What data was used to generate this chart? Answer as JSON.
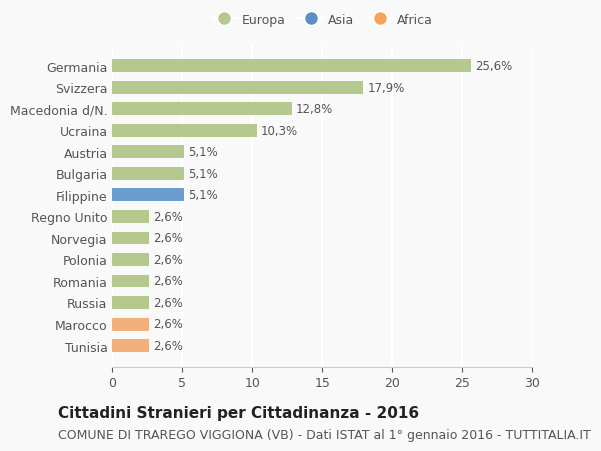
{
  "categories": [
    "Tunisia",
    "Marocco",
    "Russia",
    "Romania",
    "Polonia",
    "Norvegia",
    "Regno Unito",
    "Filippine",
    "Bulgaria",
    "Austria",
    "Ucraina",
    "Macedonia d/N.",
    "Svizzera",
    "Germania"
  ],
  "values": [
    2.6,
    2.6,
    2.6,
    2.6,
    2.6,
    2.6,
    2.6,
    5.1,
    5.1,
    5.1,
    10.3,
    12.8,
    17.9,
    25.6
  ],
  "continents": [
    "Africa",
    "Africa",
    "Europa",
    "Europa",
    "Europa",
    "Europa",
    "Europa",
    "Asia",
    "Europa",
    "Europa",
    "Europa",
    "Europa",
    "Europa",
    "Europa"
  ],
  "colors": {
    "Europa": "#b5c98e",
    "Asia": "#6b9ecf",
    "Africa": "#f2b07b"
  },
  "legend_colors": {
    "Europa": "#b5c98e",
    "Asia": "#5b8fc5",
    "Africa": "#f2a55a"
  },
  "xlim": [
    0,
    30
  ],
  "xticks": [
    0,
    5,
    10,
    15,
    20,
    25,
    30
  ],
  "title": "Cittadini Stranieri per Cittadinanza - 2016",
  "subtitle": "COMUNE DI TRAREGO VIGGIONA (VB) - Dati ISTAT al 1° gennaio 2016 - TUTTITALIA.IT",
  "background_color": "#f9f9f9",
  "grid_color": "#ffffff",
  "bar_height": 0.6,
  "title_fontsize": 11,
  "subtitle_fontsize": 9,
  "label_fontsize": 9,
  "tick_fontsize": 9,
  "value_fontsize": 8.5
}
